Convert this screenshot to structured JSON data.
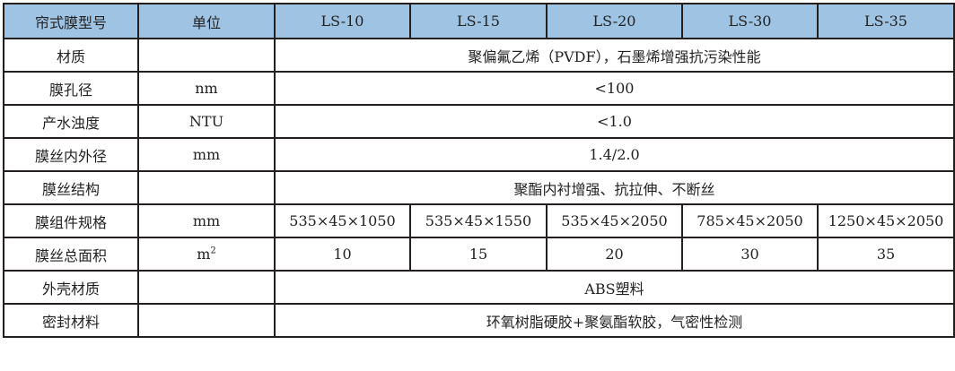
{
  "colors": {
    "header_bg": "#9fc3e3",
    "border": "#231f1f"
  },
  "header": [
    "帘式膜型号",
    "单位",
    "LS-10",
    "LS-15",
    "LS-20",
    "LS-30",
    "LS-35"
  ],
  "rows": [
    {
      "label": "材质",
      "unit": "",
      "merged": "聚偏氟乙烯（PVDF），石墨烯增强抗污染性能"
    },
    {
      "label": "膜孔径",
      "unit": "nm",
      "merged": "<100"
    },
    {
      "label": "产水浊度",
      "unit": "NTU",
      "merged": "<1.0"
    },
    {
      "label": "膜丝内外径",
      "unit": "mm",
      "merged": "1.4/2.0"
    },
    {
      "label": "膜丝结构",
      "unit": "",
      "merged": "聚酯内衬增强、抗拉伸、不断丝"
    },
    {
      "label": "膜组件规格",
      "unit": "mm",
      "values": [
        "535×45×1050",
        "535×45×1550",
        "535×45×2050",
        "785×45×2050",
        "1250×45×2050"
      ]
    },
    {
      "label": "膜丝总面积",
      "unit": "m",
      "unit_sup": "2",
      "values": [
        "10",
        "15",
        "20",
        "30",
        "35"
      ]
    },
    {
      "label": "外壳材质",
      "unit": "",
      "merged": "ABS塑料"
    },
    {
      "label": "密封材料",
      "unit": "",
      "merged": "环氧树脂硬胶+聚氨酯软胶，气密性检测"
    }
  ]
}
